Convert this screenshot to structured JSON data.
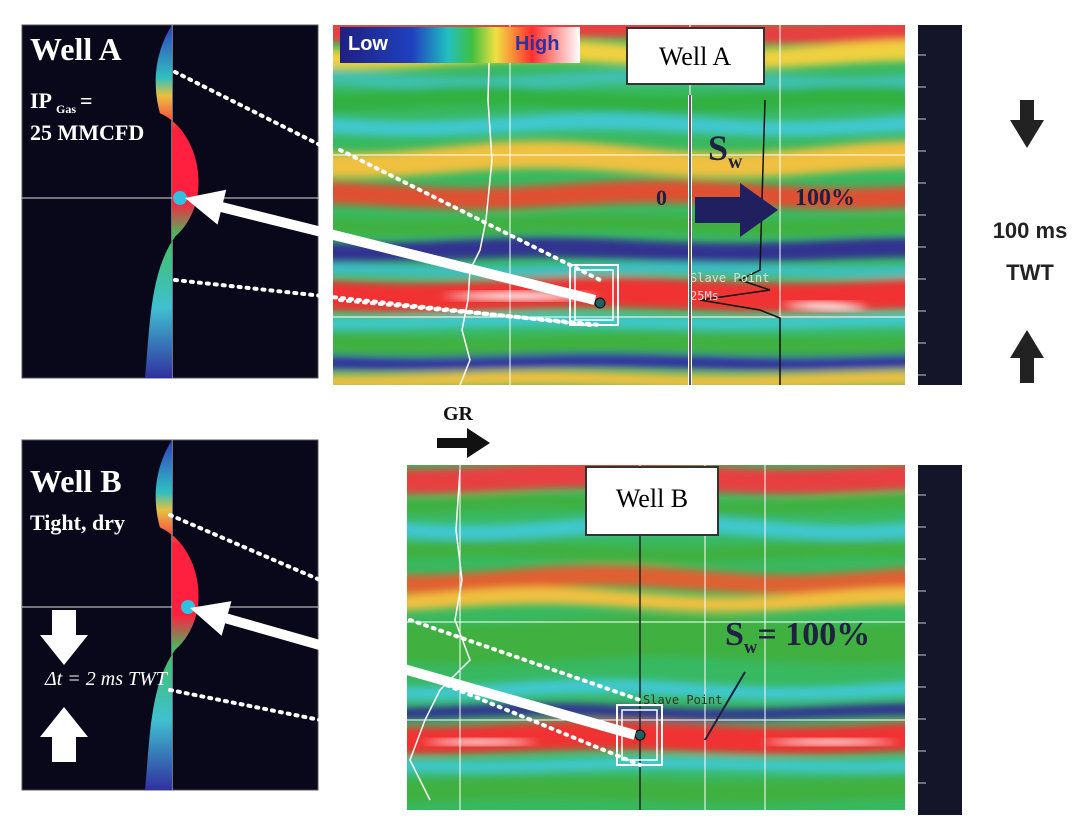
{
  "well_a": {
    "title": "Well A",
    "ip_label": "IP",
    "ip_subscript": "Gas",
    "ip_equals": "=",
    "rate": "25 MMCFD"
  },
  "colorbar": {
    "low": "Low",
    "high": "High"
  },
  "seismic_a": {
    "well_label": "Well A",
    "sw_symbol": "S",
    "sw_subscript": "w",
    "scale_min": "0",
    "scale_max": "100%",
    "pick_label": "Slave Point",
    "pick_time": "25Ms"
  },
  "scale": {
    "interval": "100 ms",
    "unit": "TWT"
  },
  "gr_label": "GR",
  "well_b": {
    "title": "Well B",
    "result": "Tight, dry",
    "delta_t": "Δt = 2 ms TWT"
  },
  "seismic_b": {
    "well_label": "Well B",
    "sw_symbol": "S",
    "sw_subscript": "w",
    "sw_value": "= 100%",
    "pick_label": "Slave Point"
  }
}
